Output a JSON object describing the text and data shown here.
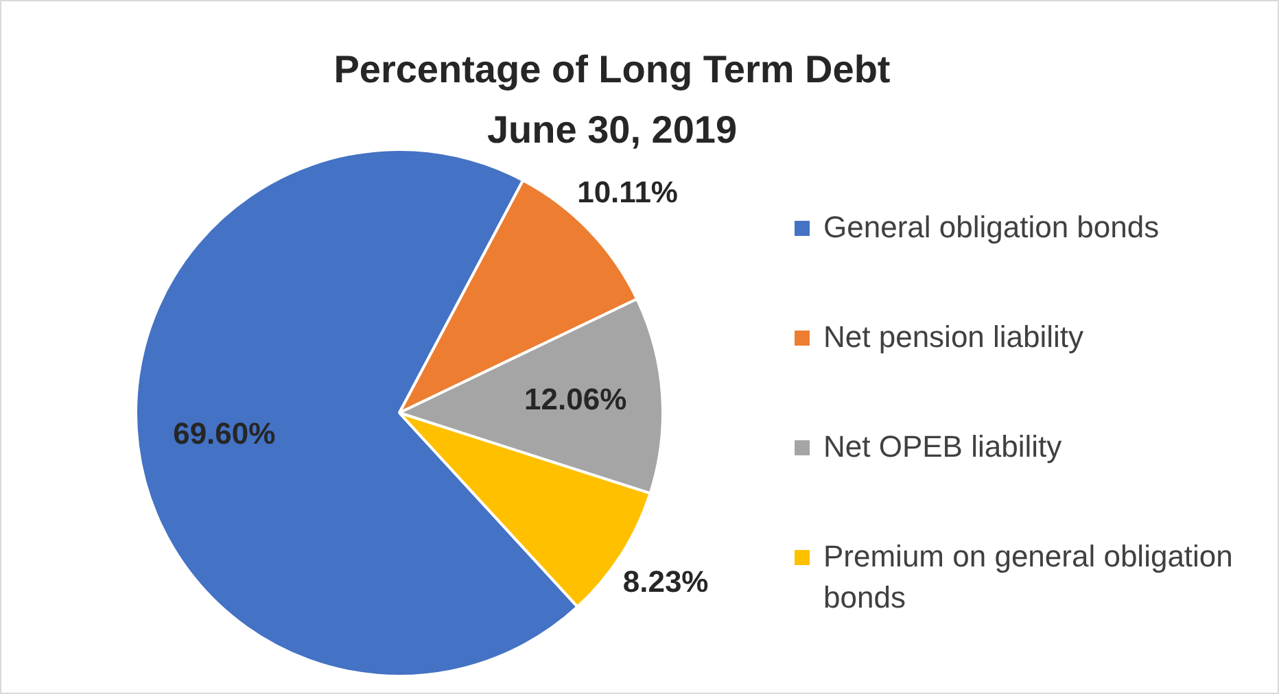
{
  "chart_data": {
    "type": "pie",
    "title": "Percentage of Long Term Debt",
    "subtitle": "June 30, 2019",
    "categories": [
      "General obligation bonds",
      "Net pension liability",
      "Net OPEB liability",
      "Premium on general obligation bonds"
    ],
    "values": [
      69.6,
      10.11,
      12.06,
      8.23
    ],
    "value_labels": [
      "69.60%",
      "10.11%",
      "12.06%",
      "8.23%"
    ],
    "colors": [
      "#4472c4",
      "#ed7d31",
      "#a5a5a5",
      "#ffc000"
    ],
    "legend": "right"
  }
}
